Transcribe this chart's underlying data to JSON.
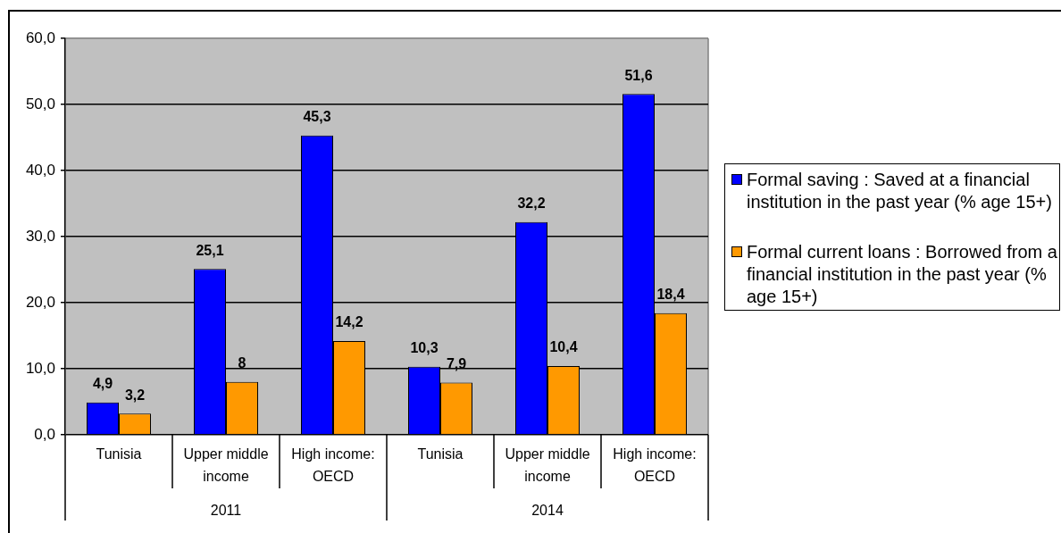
{
  "chart_data": {
    "type": "bar",
    "categories": [
      "Tunisia",
      "Upper middle income",
      "High income: OECD",
      "Tunisia",
      "Upper middle income",
      "High income: OECD"
    ],
    "series": [
      {
        "name": "Formal saving : Saved at a financial institution in the past year (% age 15+)",
        "color": "#0000ff",
        "values": [
          4.9,
          25.1,
          45.3,
          10.3,
          32.2,
          51.6
        ],
        "value_labels": [
          "4,9",
          "25,1",
          "45,3",
          "10,3",
          "32,2",
          "51,6"
        ]
      },
      {
        "name": "Formal current loans : Borrowed from a financial institution in the past year (% age 15+)",
        "color": "#ff9900",
        "values": [
          3.2,
          8,
          14.2,
          7.9,
          10.4,
          18.4
        ],
        "value_labels": [
          "3,2",
          "8",
          "14,2",
          "7,9",
          "10,4",
          "18,4"
        ]
      }
    ],
    "ylim": [
      0,
      60
    ],
    "yticks": [
      {
        "value": 0,
        "label": "0,0"
      },
      {
        "value": 10,
        "label": "10,0"
      },
      {
        "value": 20,
        "label": "20,0"
      },
      {
        "value": 30,
        "label": "30,0"
      },
      {
        "value": 40,
        "label": "40,0"
      },
      {
        "value": 50,
        "label": "50,0"
      },
      {
        "value": 60,
        "label": "60,0"
      }
    ],
    "grid": "y",
    "legend": "right",
    "annotations": [
      "2011",
      "2014"
    ]
  }
}
